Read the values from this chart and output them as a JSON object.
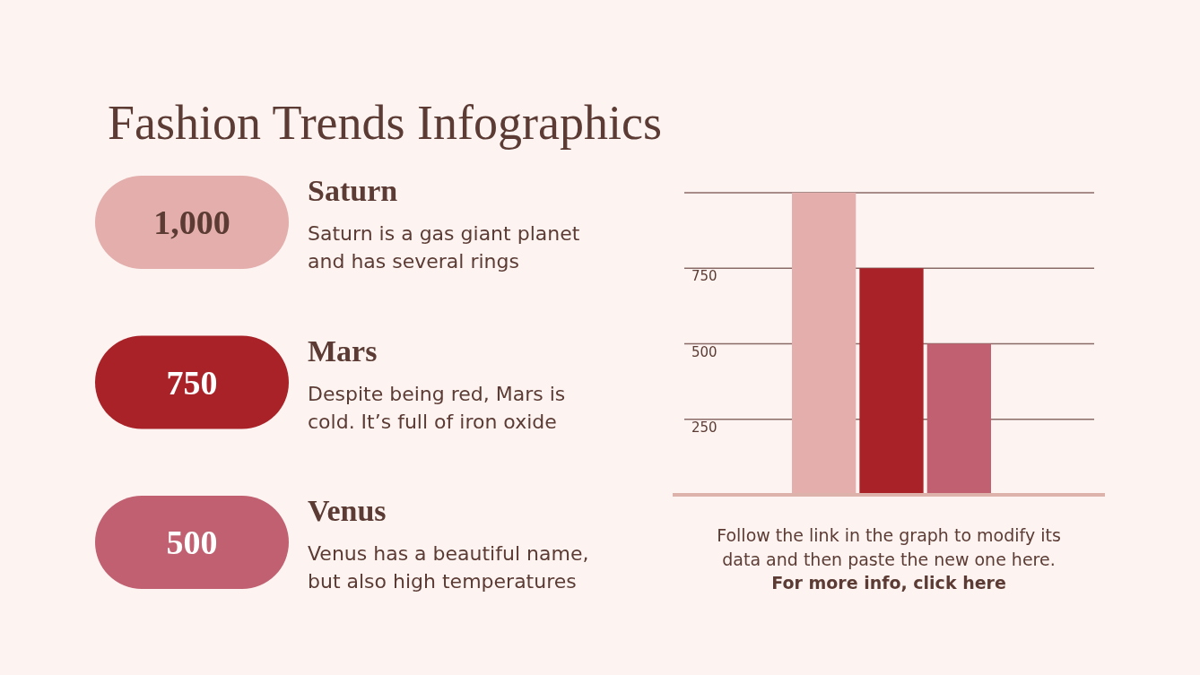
{
  "chart_data": {
    "type": "bar",
    "title": "Fashion Trends Infographics",
    "categories": [
      null,
      null,
      null
    ],
    "values": [
      1000,
      750,
      500
    ],
    "colors": [
      "#e3aeab",
      "#a82228",
      "#c06070"
    ],
    "ylim": [
      0,
      1000
    ],
    "yticks": [
      {
        "value": 250,
        "label": "250"
      },
      {
        "value": 500,
        "label": "500"
      },
      {
        "value": 750,
        "label": "750"
      },
      {
        "value": 1000,
        "label": null
      }
    ],
    "grid": "y",
    "annotations": [
      "1,000",
      "Saturn",
      "Saturn is a gas giant planet and has several rings",
      "750",
      "Mars",
      "Despite being red, Mars is cold. It’s full of iron oxide",
      "500",
      "Venus",
      "Venus has a beautiful name, but also high temperatures",
      "Follow the link in the graph to modify its data and then paste the new one here.",
      "For more info, click here"
    ]
  }
}
